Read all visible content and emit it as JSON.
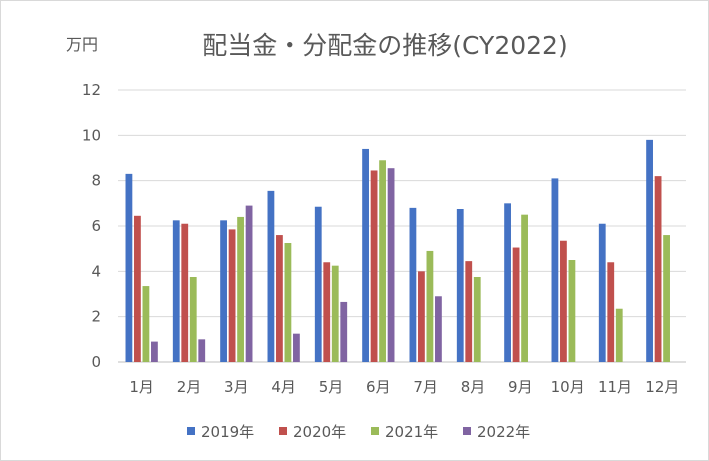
{
  "chart_data": {
    "type": "bar",
    "title": "配当金・分配金の推移(CY2022)",
    "ylabel": "万円",
    "xlabel": "",
    "ylim": [
      0,
      12
    ],
    "yticks": [
      0,
      2,
      4,
      6,
      8,
      10,
      12
    ],
    "grid": true,
    "legend_position": "bottom",
    "categories": [
      "1月",
      "2月",
      "3月",
      "4月",
      "5月",
      "6月",
      "7月",
      "8月",
      "9月",
      "10月",
      "11月",
      "12月"
    ],
    "series": [
      {
        "name": "2019年",
        "color": "#4472c4",
        "values": [
          8.3,
          6.25,
          6.25,
          7.55,
          6.85,
          9.4,
          6.8,
          6.75,
          7.0,
          8.1,
          6.1,
          9.8
        ]
      },
      {
        "name": "2020年",
        "color": "#c0504d",
        "values": [
          6.45,
          6.1,
          5.85,
          5.6,
          4.4,
          8.45,
          4.0,
          4.45,
          5.05,
          5.35,
          4.4,
          8.2
        ]
      },
      {
        "name": "2021年",
        "color": "#9bbb59",
        "values": [
          3.35,
          3.75,
          6.4,
          5.25,
          4.25,
          8.9,
          4.9,
          3.75,
          6.5,
          4.5,
          2.35,
          5.6
        ]
      },
      {
        "name": "2022年",
        "color": "#8064a2",
        "values": [
          0.9,
          1.0,
          6.9,
          1.25,
          2.65,
          8.55,
          2.9,
          null,
          null,
          null,
          null,
          null
        ]
      }
    ]
  }
}
